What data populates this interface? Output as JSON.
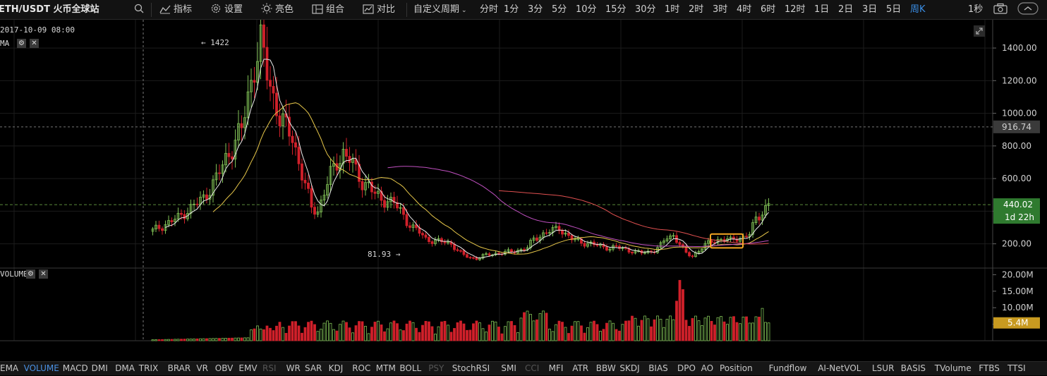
{
  "toolbar": {
    "symbol": "ETH/USDT 火币全球站",
    "indicators_label": "指标",
    "settings_label": "设置",
    "theme_label": "亮色",
    "combo_label": "组合",
    "compare_label": "对比",
    "custom_period_label": "自定义周期",
    "periods": [
      "分时",
      "1分",
      "3分",
      "5分",
      "10分",
      "15分",
      "30分",
      "1时",
      "2时",
      "3时",
      "4时",
      "6时",
      "12时",
      "1日",
      "2日",
      "3日",
      "5日",
      "周K"
    ],
    "active_period": "周K",
    "refresh_label": "1秒"
  },
  "legend": {
    "datetime": "2017-10-09 08:00",
    "main_indicator": "MA",
    "volume_indicator": "VOLUME"
  },
  "annotations": {
    "high_label": "1422",
    "low_label": "81.93"
  },
  "price_axis": {
    "ticks": [
      "1400.00",
      "1200.00",
      "1000.00",
      "800.00",
      "600.00",
      "400.00",
      "200.00"
    ],
    "crosshair_value": "916.74",
    "last_price": "440.02",
    "countdown": "1d 22h"
  },
  "volume_axis": {
    "ticks": [
      "20.00M",
      "15.00M",
      "10.00M",
      "5.00M"
    ],
    "last_volume": "5.4M"
  },
  "colors": {
    "up": "#7fbf55",
    "down": "#d0202a",
    "ma5": "#e8e8e8",
    "ma10": "#e8c84a",
    "ma30": "#c050c0",
    "ma60": "#e05050",
    "highlight": "#f5a623",
    "last_price_bg": "#2f7a2f",
    "volume_bg": "#c89a20",
    "active_tab": "#4a90e2"
  },
  "chart_data": {
    "type": "candlestick",
    "interval": "weekly",
    "price_range": [
      60,
      1530
    ],
    "volume_range": [
      0,
      22000000
    ],
    "high": 1422,
    "low": 81.93,
    "last_close": 440.02,
    "last_volume": 5400000
  },
  "bottom_indicators": [
    {
      "label": "EMA",
      "state": "normal"
    },
    {
      "label": "VOLUME",
      "state": "active"
    },
    {
      "label": "MACD",
      "state": "normal"
    },
    {
      "label": "DMI",
      "state": "normal"
    },
    {
      "label": "DMA",
      "state": "normal"
    },
    {
      "label": "TRIX",
      "state": "normal"
    },
    {
      "label": "BRAR",
      "state": "normal"
    },
    {
      "label": "VR",
      "state": "normal"
    },
    {
      "label": "OBV",
      "state": "normal"
    },
    {
      "label": "EMV",
      "state": "normal"
    },
    {
      "label": "RSI",
      "state": "dim"
    },
    {
      "label": "WR",
      "state": "normal"
    },
    {
      "label": "SAR",
      "state": "normal"
    },
    {
      "label": "KDJ",
      "state": "normal"
    },
    {
      "label": "ROC",
      "state": "normal"
    },
    {
      "label": "MTM",
      "state": "normal"
    },
    {
      "label": "BOLL",
      "state": "normal"
    },
    {
      "label": "PSY",
      "state": "dim"
    },
    {
      "label": "StochRSI",
      "state": "normal"
    },
    {
      "label": "SMI",
      "state": "normal"
    },
    {
      "label": "CCI",
      "state": "dim"
    },
    {
      "label": "MFI",
      "state": "normal"
    },
    {
      "label": "ATR",
      "state": "normal"
    },
    {
      "label": "BBW",
      "state": "normal"
    },
    {
      "label": "SKDJ",
      "state": "normal"
    },
    {
      "label": "BIAS",
      "state": "normal"
    },
    {
      "label": "DPO",
      "state": "normal"
    },
    {
      "label": "AO",
      "state": "normal"
    },
    {
      "label": "Position",
      "state": "normal"
    },
    {
      "label": "Fundflow",
      "state": "normal"
    },
    {
      "label": "AI-NetVOL",
      "state": "normal"
    },
    {
      "label": "LSUR",
      "state": "normal"
    },
    {
      "label": "BASIS",
      "state": "normal"
    },
    {
      "label": "TVolume",
      "state": "normal"
    },
    {
      "label": "FTBS",
      "state": "normal"
    },
    {
      "label": "TTSI",
      "state": "normal"
    }
  ]
}
